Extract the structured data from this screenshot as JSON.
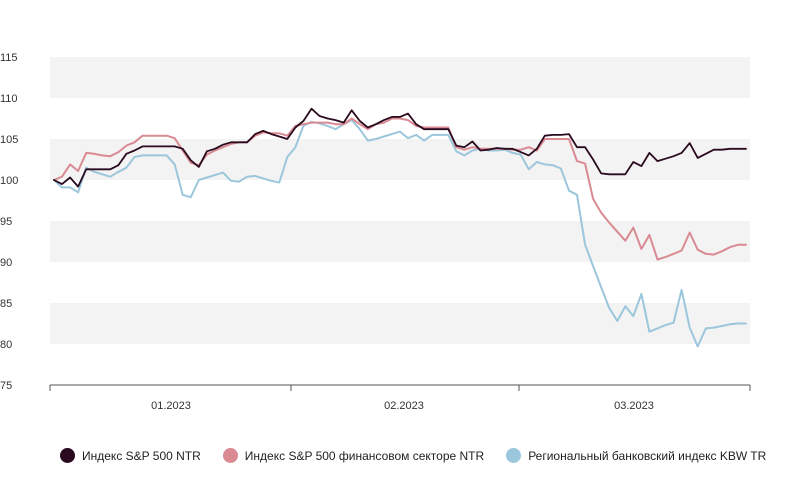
{
  "chart_data": {
    "type": "line",
    "ylim": [
      75,
      115
    ],
    "y_ticks": [
      75,
      80,
      85,
      90,
      95,
      100,
      105,
      110,
      115
    ],
    "x_ticks": [
      "01.2023",
      "02.2023",
      "03.2023"
    ],
    "grid": "alternating horizontal bands",
    "legend_position": "bottom",
    "series": [
      {
        "name": "Индекс S&P 500 NTR",
        "color": "#2a0a1e",
        "values": [
          100,
          99.5,
          100.3,
          99.2,
          101.3,
          101.3,
          101.3,
          101.3,
          101.8,
          103.2,
          103.6,
          104.1,
          104.1,
          104.1,
          104.1,
          104.1,
          103.8,
          102.4,
          101.6,
          103.5,
          103.8,
          104.3,
          104.6,
          104.6,
          104.6,
          105.6,
          106.0,
          105.6,
          105.3,
          105.0,
          106.4,
          107.2,
          108.7,
          107.8,
          107.5,
          107.3,
          107.0,
          108.5,
          107.2,
          106.4,
          106.8,
          107.3,
          107.7,
          107.7,
          108.1,
          106.8,
          106.2,
          106.2,
          106.2,
          106.2,
          104.2,
          104.0,
          104.7,
          103.6,
          103.7,
          103.9,
          103.8,
          103.8,
          103.4,
          103.0,
          103.8,
          105.4,
          105.5,
          105.5,
          105.6,
          104.0,
          104.0,
          102.5,
          100.8,
          100.7,
          100.7,
          100.7,
          102.2,
          101.7,
          103.3,
          102.3,
          102.6,
          102.9,
          103.3,
          104.5,
          102.7,
          103.2,
          103.7,
          103.7,
          103.8,
          103.8,
          103.8
        ]
      },
      {
        "name": "Индекс S&P 500 финансовом секторе NTR",
        "color": "#d98a92",
        "values": [
          100,
          100.4,
          101.9,
          101.1,
          103.3,
          103.2,
          103.0,
          102.9,
          103.4,
          104.2,
          104.6,
          105.4,
          105.4,
          105.4,
          105.4,
          105.1,
          103.6,
          102.1,
          101.8,
          103.1,
          103.6,
          104.0,
          104.4,
          104.6,
          104.6,
          105.4,
          105.8,
          105.7,
          105.7,
          105.4,
          106.6,
          106.8,
          107.0,
          107.0,
          107.0,
          106.8,
          106.8,
          107.5,
          106.8,
          106.2,
          106.8,
          107.0,
          107.5,
          107.5,
          107.3,
          106.6,
          106.4,
          106.4,
          106.4,
          106.4,
          104.0,
          103.7,
          104.0,
          103.8,
          103.8,
          103.8,
          103.8,
          103.7,
          103.7,
          104.0,
          103.6,
          105.0,
          105.0,
          105.0,
          105.0,
          102.3,
          102.0,
          97.7,
          96.0,
          94.8,
          93.7,
          92.6,
          94.2,
          91.6,
          93.3,
          90.3,
          90.6,
          91.0,
          91.4,
          93.6,
          91.5,
          91.0,
          90.9,
          91.3,
          91.8,
          92.1,
          92.1
        ]
      },
      {
        "name": "Региональный банковский индекс KBW TR",
        "color": "#9cc6dc",
        "values": [
          100,
          99.1,
          99.1,
          98.5,
          101.5,
          101.0,
          100.7,
          100.4,
          101.0,
          101.5,
          102.8,
          103.0,
          103.0,
          103.0,
          103.0,
          101.9,
          98.2,
          97.9,
          100.0,
          100.3,
          100.6,
          100.9,
          99.9,
          99.8,
          100.4,
          100.5,
          100.2,
          99.9,
          99.7,
          102.8,
          104.0,
          106.6,
          107.1,
          106.9,
          106.6,
          106.2,
          106.8,
          107.3,
          106.2,
          104.8,
          105.0,
          105.3,
          105.6,
          105.9,
          105.1,
          105.5,
          104.8,
          105.5,
          105.5,
          105.5,
          103.5,
          103.0,
          103.6,
          103.8,
          103.6,
          103.6,
          103.7,
          103.3,
          103.1,
          101.3,
          102.2,
          101.9,
          101.8,
          101.4,
          98.7,
          98.2,
          92.1,
          89.5,
          86.9,
          84.4,
          82.8,
          84.6,
          83.4,
          86.1,
          81.5,
          81.9,
          82.3,
          82.6,
          86.6,
          82.0,
          79.7,
          81.9,
          82.0,
          82.2,
          82.4,
          82.5,
          82.5
        ]
      }
    ]
  }
}
